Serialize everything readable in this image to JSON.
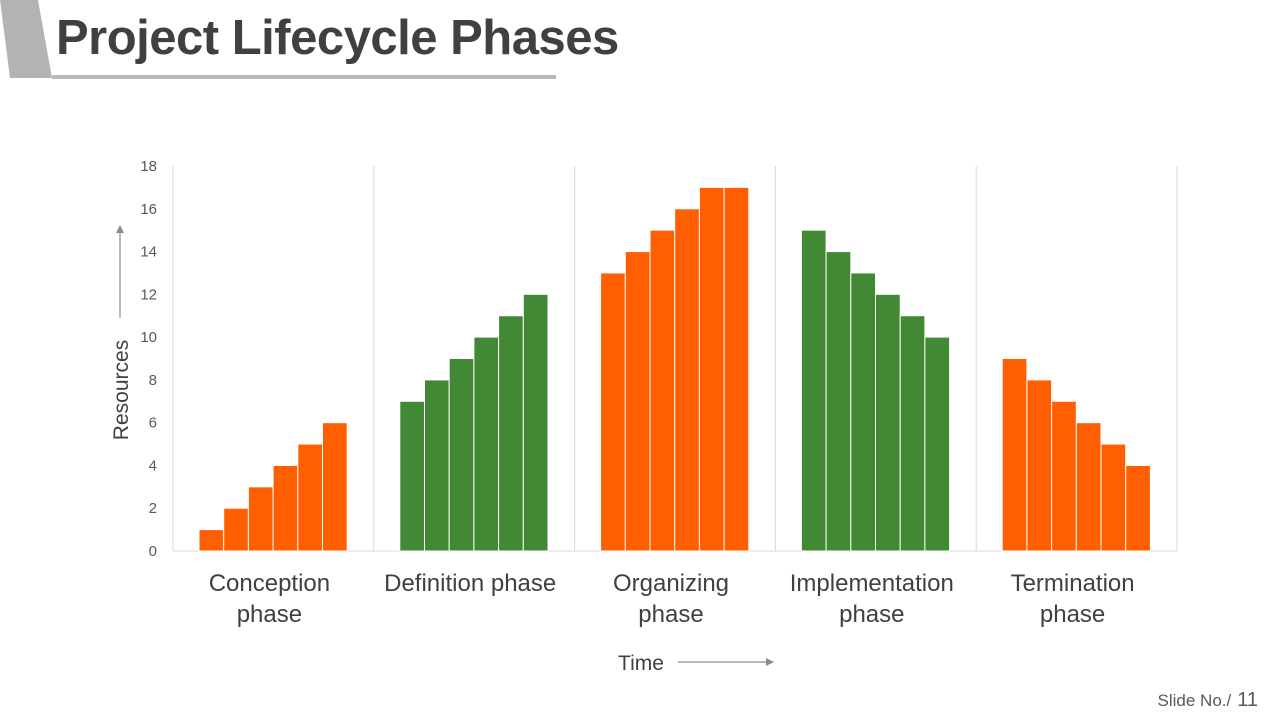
{
  "slide": {
    "title": "Project Lifecycle Phases",
    "slide_label": "Slide No./",
    "slide_number": "11",
    "accent_color": "#b3b3b3",
    "underline_color": "#b8b8b8"
  },
  "chart_data": {
    "type": "bar",
    "title": "",
    "xlabel": "Time",
    "ylabel": "Resources",
    "ylim": [
      0,
      18
    ],
    "yticks": [
      0,
      2,
      4,
      6,
      8,
      10,
      12,
      14,
      16,
      18
    ],
    "grid": "vertical separators between phases",
    "categories": [
      {
        "label": [
          "Conception",
          "phase"
        ],
        "color": "#ff5f00",
        "values": [
          1,
          2,
          3,
          4,
          5,
          6
        ]
      },
      {
        "label": [
          "Definition phase"
        ],
        "color": "#428936",
        "values": [
          7,
          8,
          9,
          10,
          11,
          12
        ]
      },
      {
        "label": [
          "Organizing",
          "phase"
        ],
        "color": "#ff5f00",
        "values": [
          13,
          14,
          15,
          16,
          17,
          17
        ]
      },
      {
        "label": [
          "Implementation",
          "phase"
        ],
        "color": "#428936",
        "values": [
          15,
          14,
          13,
          12,
          11,
          10
        ]
      },
      {
        "label": [
          "Termination",
          "phase"
        ],
        "color": "#ff5f00",
        "values": [
          9,
          8,
          7,
          6,
          5,
          4
        ]
      }
    ]
  }
}
